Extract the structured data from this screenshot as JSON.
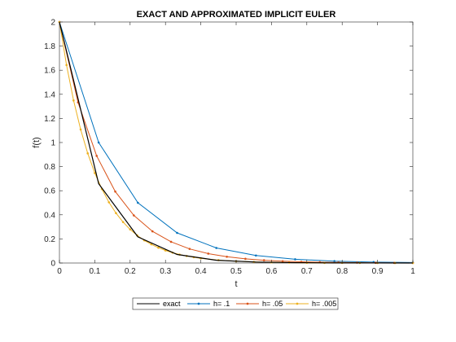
{
  "chart_data": {
    "type": "line",
    "title": "EXACT AND APPROXIMATED IMPLICIT EULER",
    "xlabel": "t",
    "ylabel": "f(t)",
    "xlim": [
      0,
      1
    ],
    "ylim": [
      0,
      2
    ],
    "xticks": [
      "0",
      "0.1",
      "0.2",
      "0.3",
      "0.4",
      "0.5",
      "0.6",
      "0.7",
      "0.8",
      "0.9",
      "1"
    ],
    "yticks": [
      "0",
      "0.2",
      "0.4",
      "0.6",
      "0.8",
      "1",
      "1.2",
      "1.4",
      "1.6",
      "1.8",
      "2"
    ],
    "grid": false,
    "legend_position": "bottom-outside",
    "series": [
      {
        "name": "exact",
        "color": "#000000",
        "marker": "none",
        "x": [
          0,
          0.111,
          0.222,
          0.333,
          0.444,
          0.556,
          0.667,
          0.778,
          0.889,
          1.0
        ],
        "y": [
          2.0,
          0.658,
          0.217,
          0.071,
          0.023,
          0.008,
          0.003,
          0.001,
          0.0003,
          0.0001
        ]
      },
      {
        "name": "h= .1",
        "color": "#0072BD",
        "marker": "dot",
        "x": [
          0,
          0.111,
          0.222,
          0.333,
          0.444,
          0.556,
          0.667,
          0.778,
          0.889,
          1.0
        ],
        "y": [
          2.0,
          1.0,
          0.5,
          0.25,
          0.125,
          0.0625,
          0.03125,
          0.0156,
          0.0078,
          0.0039
        ]
      },
      {
        "name": "h= .05",
        "color": "#D95319",
        "marker": "dot",
        "x": [
          0,
          0.0526,
          0.1053,
          0.1579,
          0.2105,
          0.2632,
          0.3158,
          0.3684,
          0.4211,
          0.4737,
          0.5263,
          0.5789,
          0.6316,
          0.6842,
          0.7368,
          0.7895,
          0.8421,
          0.8947,
          0.9474,
          1.0
        ],
        "y": [
          2.0,
          1.333,
          0.889,
          0.593,
          0.395,
          0.263,
          0.176,
          0.117,
          0.078,
          0.052,
          0.035,
          0.023,
          0.015,
          0.01,
          0.007,
          0.005,
          0.003,
          0.002,
          0.001,
          0.001
        ]
      },
      {
        "name": "h= .005",
        "color": "#EDB120",
        "marker": "dot",
        "x": [
          0,
          0.02,
          0.04,
          0.06,
          0.08,
          0.1,
          0.12,
          0.14,
          0.16,
          0.18,
          0.2,
          0.22,
          0.24,
          0.26,
          0.28,
          0.3,
          0.32,
          0.34,
          0.36,
          0.38,
          0.4,
          0.45,
          0.5,
          0.55,
          0.6,
          0.65,
          0.7,
          0.75,
          0.8,
          0.85,
          0.9,
          0.95,
          1.0
        ],
        "y": [
          2.0,
          1.643,
          1.349,
          1.108,
          0.91,
          0.747,
          0.614,
          0.504,
          0.414,
          0.34,
          0.279,
          0.229,
          0.188,
          0.155,
          0.127,
          0.104,
          0.086,
          0.07,
          0.058,
          0.048,
          0.039,
          0.024,
          0.015,
          0.009,
          0.005,
          0.003,
          0.002,
          0.001,
          0.0008,
          0.0005,
          0.0003,
          0.0002,
          0.0001
        ]
      }
    ]
  }
}
